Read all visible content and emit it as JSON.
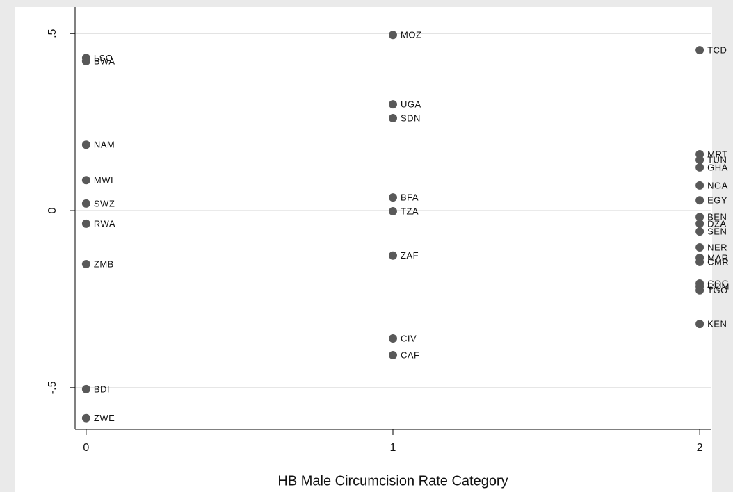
{
  "chart_data": {
    "type": "scatter",
    "x_label": "HB Male Circumcision Rate Category",
    "xlim": [
      -0.036,
      2.036
    ],
    "xticks": [
      0,
      1,
      2
    ],
    "ylim": [
      -0.618,
      0.575
    ],
    "yticks": [
      {
        "value": 0.5,
        "label": ".5"
      },
      0,
      {
        "value": -0.5,
        "label": "-.5"
      }
    ],
    "grid": true,
    "series": [
      {
        "color": "#595959",
        "x": [
          0,
          0,
          0,
          0,
          0,
          0,
          0,
          0,
          0,
          1,
          1,
          1,
          1,
          1,
          1,
          1,
          1,
          2,
          2,
          2,
          2,
          2,
          2,
          2,
          2,
          2,
          2,
          2,
          2,
          2,
          2,
          2,
          2
        ],
        "values": [
          0.431,
          0.422,
          0.186,
          0.086,
          0.02,
          -0.037,
          -0.151,
          -0.504,
          -0.586,
          0.496,
          0.3,
          0.261,
          0.037,
          -0.002,
          -0.127,
          -0.361,
          -0.408,
          0.453,
          0.159,
          0.143,
          0.122,
          0.071,
          0.029,
          -0.018,
          -0.037,
          -0.059,
          -0.104,
          -0.133,
          -0.145,
          -0.206,
          -0.214,
          -0.225,
          -0.32
        ],
        "point_labels": [
          "LSO",
          "BWA",
          "NAM",
          "MWI",
          "SWZ",
          "RWA",
          "ZMB",
          "BDI",
          "ZWE",
          "MOZ",
          "UGA",
          "SDN",
          "BFA",
          "TZA",
          "ZAF",
          "CIV",
          "CAF",
          "TCD",
          "MRT",
          "TUN",
          "GHA",
          "NGA",
          "EGY",
          "BEN",
          "DZA",
          "SEN",
          "NER",
          "MAR",
          "CMR",
          "COG",
          "COM",
          "TGO",
          "KEN"
        ]
      }
    ]
  }
}
